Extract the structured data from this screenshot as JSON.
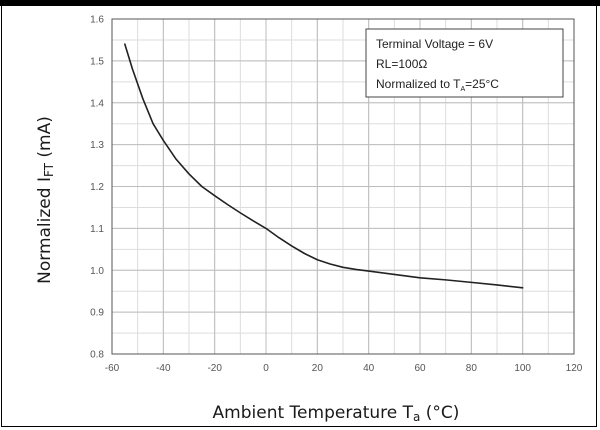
{
  "chart_data": {
    "type": "line",
    "title": "",
    "xlabel": "Ambient Temperature T",
    "xlabel_sub": "a",
    "xlabel_unit": " (°C)",
    "ylabel": "Normalized I",
    "ylabel_sub": "FT",
    "ylabel_unit": " (mA)",
    "xlim": [
      -60,
      120
    ],
    "ylim": [
      0.8,
      1.6
    ],
    "x_ticks": [
      -60,
      -40,
      -20,
      0,
      20,
      40,
      60,
      80,
      100,
      120
    ],
    "x_tick_labels": [
      "-60",
      "-40",
      "-20",
      "0",
      "20",
      "40",
      "60",
      "80",
      "100",
      "120"
    ],
    "y_ticks": [
      0.8,
      0.9,
      1.0,
      1.1,
      1.2,
      1.3,
      1.4,
      1.5,
      1.6
    ],
    "y_tick_labels": [
      "0.8",
      "0.9",
      "1.0",
      "1.1",
      "1.2",
      "1.3",
      "1.4",
      "1.5",
      "1.6"
    ],
    "x_minor_step": 10,
    "y_minor_step": 0.05,
    "grid": true,
    "legend_position": "top-right",
    "legend_lines": [
      "Terminal Voltage = 6V",
      "RL=100Ω",
      "Normalized to T",
      "A",
      "=25°C"
    ],
    "series": [
      {
        "name": "",
        "color": "#222222",
        "x": [
          -55,
          -52,
          -48,
          -44,
          -40,
          -35,
          -30,
          -25,
          -20,
          -15,
          -10,
          -5,
          0,
          5,
          10,
          15,
          20,
          25,
          30,
          35,
          40,
          50,
          60,
          70,
          80,
          90,
          100
        ],
        "y": [
          1.54,
          1.48,
          1.41,
          1.35,
          1.31,
          1.265,
          1.23,
          1.2,
          1.178,
          1.157,
          1.137,
          1.118,
          1.1,
          1.078,
          1.058,
          1.04,
          1.025,
          1.015,
          1.007,
          1.002,
          0.998,
          0.99,
          0.982,
          0.977,
          0.971,
          0.965,
          0.958
        ]
      }
    ]
  }
}
